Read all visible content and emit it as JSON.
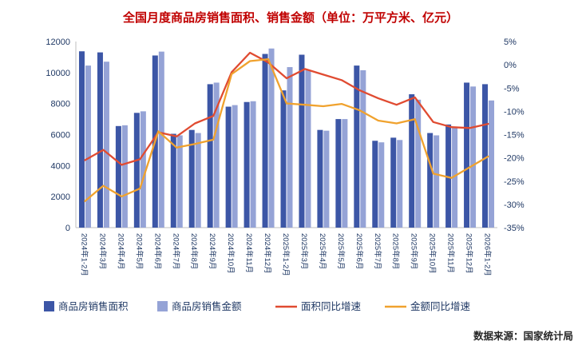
{
  "title": "全国月度商品房销售面积、销售金额（单位：万平方米、亿元）",
  "source": "数据来源：国家统计局",
  "colors": {
    "title": "#C00000",
    "axis_text": "#1F3864",
    "axis_line": "#BFBFBF",
    "bar_area": "#3C56A6",
    "bar_amount": "#95A3D6",
    "line_area": "#E04B31",
    "line_amount": "#F0A22E",
    "legend_text": "#1F3864",
    "source_text": "#262626"
  },
  "chart_data": {
    "type": "bar",
    "subtype": "bar-line-combo",
    "title": "全国月度商品房销售面积、销售金额（单位：万平方米、亿元）",
    "grid": false,
    "legend_position": "bottom",
    "categories": [
      "2024年1-2月",
      "2024年3月",
      "2024年4月",
      "2024年5月",
      "2024年6月",
      "2024年7月",
      "2024年8月",
      "2024年9月",
      "2024年10月",
      "2024年11月",
      "2024年12月",
      "2025年1-2月",
      "2025年3月",
      "2025年4月",
      "2025年5月",
      "2025年6月",
      "2025年7月",
      "2025年8月",
      "2025年9月",
      "2025年10月",
      "2025年11月",
      "2025年12月",
      "2026年1-2月"
    ],
    "left_axis": {
      "min": 0,
      "max": 12000,
      "step": 2000
    },
    "right_axis": {
      "min": -35,
      "max": 5,
      "step": 5,
      "suffix": "%"
    },
    "bar_series": [
      {
        "name": "商品房销售面积",
        "unit": "万平方米",
        "axis": "left",
        "values": [
          11370,
          11300,
          6550,
          7400,
          11100,
          6050,
          6300,
          9250,
          7800,
          8100,
          11200,
          8850,
          11150,
          6300,
          7000,
          10450,
          5600,
          5800,
          8600,
          6100,
          6650,
          9350,
          9250
        ]
      },
      {
        "name": "商品房销售金额",
        "unit": "亿元",
        "axis": "left",
        "values": [
          10450,
          10700,
          6600,
          7500,
          11350,
          5950,
          6100,
          9350,
          7900,
          8150,
          11550,
          10350,
          10150,
          6250,
          7000,
          10150,
          5500,
          5650,
          8250,
          5950,
          6450,
          9100,
          8200
        ]
      }
    ],
    "line_series": [
      {
        "name": "面积同比增速",
        "axis": "right",
        "unit": "%",
        "values": [
          -20.5,
          -18.3,
          -21.5,
          -20.3,
          -14.5,
          -15.4,
          -12.6,
          -11.0,
          -1.6,
          2.6,
          0.5,
          -2.9,
          -0.9,
          -2.1,
          -3.3,
          -5.5,
          -7.2,
          -8.6,
          -7.0,
          -12.3,
          -13.4,
          -13.6,
          -12.7
        ]
      },
      {
        "name": "金额同比增速",
        "axis": "right",
        "unit": "%",
        "values": [
          -29.3,
          -26.0,
          -28.3,
          -26.6,
          -14.3,
          -17.8,
          -17.0,
          -16.1,
          -2.0,
          0.8,
          1.2,
          -8.3,
          -8.6,
          -8.9,
          -8.4,
          -9.8,
          -12.0,
          -12.6,
          -11.7,
          -23.4,
          -24.3,
          -22.0,
          -19.7
        ]
      }
    ]
  }
}
